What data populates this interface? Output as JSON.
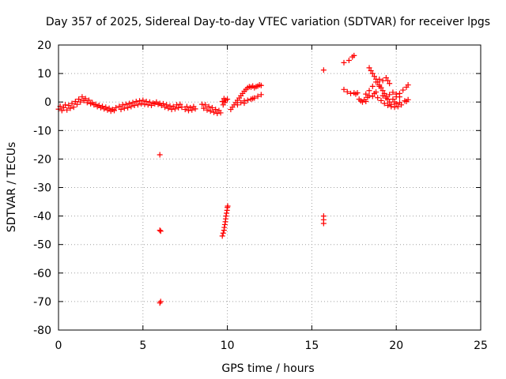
{
  "chart_data": {
    "type": "scatter",
    "title": "Day 357 of 2025, Sidereal Day-to-day VTEC variation (SDTVAR) for receiver lpgs",
    "xlabel": "GPS time / hours",
    "ylabel": "SDTVAR / TECUs",
    "xlim": [
      0,
      25
    ],
    "ylim": [
      -80,
      20
    ],
    "xticks": [
      0,
      5,
      10,
      15,
      20,
      25
    ],
    "yticks": [
      -80,
      -70,
      -60,
      -50,
      -40,
      -30,
      -20,
      -10,
      0,
      10,
      20
    ],
    "xtick_labels": [
      "0",
      "5",
      "10",
      "15",
      "20",
      "25"
    ],
    "ytick_labels": [
      "-80",
      "-70",
      "-60",
      "-50",
      "-40",
      "-30",
      "-20",
      "-10",
      "0",
      "10",
      "20"
    ],
    "grid": true,
    "marker": "plus",
    "color": "#ff0000",
    "series": [
      {
        "name": "SDTVAR",
        "points": [
          [
            0.0,
            -2.5
          ],
          [
            0.1,
            -1.5
          ],
          [
            0.2,
            -3.0
          ],
          [
            0.3,
            -2.0
          ],
          [
            0.4,
            -1.0
          ],
          [
            0.5,
            -2.8
          ],
          [
            0.6,
            -1.2
          ],
          [
            0.7,
            -2.2
          ],
          [
            0.8,
            -0.5
          ],
          [
            0.9,
            -1.8
          ],
          [
            1.0,
            0.2
          ],
          [
            1.1,
            -0.8
          ],
          [
            1.2,
            1.0
          ],
          [
            1.3,
            0.0
          ],
          [
            1.4,
            1.8
          ],
          [
            1.5,
            0.5
          ],
          [
            1.6,
            1.2
          ],
          [
            1.7,
            -0.2
          ],
          [
            1.8,
            0.6
          ],
          [
            1.9,
            -0.6
          ],
          [
            2.0,
            -0.2
          ],
          [
            2.1,
            -1.0
          ],
          [
            2.2,
            -0.8
          ],
          [
            2.3,
            -1.6
          ],
          [
            2.4,
            -1.2
          ],
          [
            2.5,
            -2.0
          ],
          [
            2.6,
            -1.5
          ],
          [
            2.7,
            -2.4
          ],
          [
            2.8,
            -1.8
          ],
          [
            2.9,
            -2.8
          ],
          [
            3.0,
            -2.2
          ],
          [
            3.1,
            -3.2
          ],
          [
            3.2,
            -2.6
          ],
          [
            3.3,
            -3.0
          ],
          [
            3.4,
            -2.0
          ],
          [
            3.6,
            -1.5
          ],
          [
            3.7,
            -2.6
          ],
          [
            3.8,
            -1.0
          ],
          [
            3.9,
            -2.2
          ],
          [
            4.0,
            -0.8
          ],
          [
            4.1,
            -2.0
          ],
          [
            4.2,
            -0.5
          ],
          [
            4.3,
            -1.6
          ],
          [
            4.4,
            -0.2
          ],
          [
            4.5,
            -1.2
          ],
          [
            4.6,
            0.2
          ],
          [
            4.7,
            -1.0
          ],
          [
            4.8,
            0.4
          ],
          [
            4.9,
            -0.6
          ],
          [
            5.0,
            0.6
          ],
          [
            5.1,
            -0.8
          ],
          [
            5.2,
            0.2
          ],
          [
            5.3,
            -1.0
          ],
          [
            5.4,
            0.0
          ],
          [
            5.5,
            -1.2
          ],
          [
            5.6,
            -0.4
          ],
          [
            5.7,
            -0.6
          ],
          [
            5.8,
            0.0
          ],
          [
            5.9,
            -0.8
          ],
          [
            6.0,
            -0.5
          ],
          [
            6.0,
            -18.5
          ],
          [
            6.0,
            -45.0
          ],
          [
            6.0,
            -70.5
          ],
          [
            6.05,
            -70.0
          ],
          [
            6.05,
            -45.3
          ],
          [
            6.1,
            -1.2
          ],
          [
            6.2,
            -0.6
          ],
          [
            6.3,
            -1.8
          ],
          [
            6.4,
            -1.0
          ],
          [
            6.5,
            -2.2
          ],
          [
            6.6,
            -1.4
          ],
          [
            6.7,
            -2.6
          ],
          [
            6.8,
            -1.6
          ],
          [
            6.9,
            -2.4
          ],
          [
            7.0,
            -1.0
          ],
          [
            7.1,
            -2.0
          ],
          [
            7.2,
            -0.8
          ],
          [
            7.3,
            -1.8
          ],
          [
            7.5,
            -2.6
          ],
          [
            7.6,
            -1.6
          ],
          [
            7.7,
            -3.0
          ],
          [
            7.8,
            -2.0
          ],
          [
            7.9,
            -2.8
          ],
          [
            8.0,
            -1.6
          ],
          [
            8.1,
            -2.4
          ],
          [
            8.5,
            -0.8
          ],
          [
            8.6,
            -2.2
          ],
          [
            8.7,
            -1.0
          ],
          [
            8.8,
            -2.8
          ],
          [
            8.9,
            -1.6
          ],
          [
            9.0,
            -3.2
          ],
          [
            9.1,
            -2.0
          ],
          [
            9.2,
            -3.6
          ],
          [
            9.3,
            -2.6
          ],
          [
            9.4,
            -4.0
          ],
          [
            9.5,
            -3.0
          ],
          [
            9.6,
            -3.8
          ],
          [
            9.7,
            0.2
          ],
          [
            9.75,
            -1.0
          ],
          [
            9.8,
            1.2
          ],
          [
            9.85,
            -0.2
          ],
          [
            9.9,
            0.6
          ],
          [
            9.7,
            -47.0
          ],
          [
            9.75,
            -46.0
          ],
          [
            9.8,
            -45.0
          ],
          [
            9.82,
            -44.0
          ],
          [
            9.85,
            -43.0
          ],
          [
            9.88,
            -42.0
          ],
          [
            9.9,
            -41.0
          ],
          [
            9.92,
            -40.0
          ],
          [
            9.95,
            -39.0
          ],
          [
            9.98,
            -38.0
          ],
          [
            10.0,
            -37.0
          ],
          [
            10.02,
            -36.5
          ],
          [
            10.0,
            1.0
          ],
          [
            10.2,
            -2.6
          ],
          [
            10.3,
            -1.8
          ],
          [
            10.4,
            -1.0
          ],
          [
            10.5,
            -0.2
          ],
          [
            10.6,
            0.6
          ],
          [
            10.7,
            1.4
          ],
          [
            10.8,
            2.2
          ],
          [
            10.9,
            3.0
          ],
          [
            11.0,
            3.8
          ],
          [
            11.1,
            4.4
          ],
          [
            11.2,
            5.0
          ],
          [
            11.3,
            5.4
          ],
          [
            11.4,
            5.2
          ],
          [
            11.5,
            5.6
          ],
          [
            11.6,
            5.0
          ],
          [
            11.7,
            5.4
          ],
          [
            11.8,
            5.6
          ],
          [
            11.9,
            6.0
          ],
          [
            12.0,
            5.8
          ],
          [
            10.6,
            -1.0
          ],
          [
            10.8,
            -0.2
          ],
          [
            11.0,
            0.4
          ],
          [
            11.2,
            0.6
          ],
          [
            11.4,
            1.0
          ],
          [
            11.6,
            1.4
          ],
          [
            11.8,
            2.0
          ],
          [
            12.0,
            2.6
          ],
          [
            11.5,
            1.2
          ],
          [
            11.0,
            -0.4
          ],
          [
            15.7,
            11.2
          ],
          [
            15.7,
            -40.0
          ],
          [
            15.7,
            -41.3
          ],
          [
            15.7,
            -42.6
          ],
          [
            16.9,
            13.8
          ],
          [
            17.2,
            14.6
          ],
          [
            17.4,
            15.8
          ],
          [
            17.5,
            16.3
          ],
          [
            16.9,
            4.4
          ],
          [
            17.1,
            3.6
          ],
          [
            17.3,
            3.0
          ],
          [
            17.5,
            3.2
          ],
          [
            17.6,
            2.8
          ],
          [
            17.7,
            3.2
          ],
          [
            17.8,
            1.0
          ],
          [
            17.9,
            0.4
          ],
          [
            18.0,
            0.0
          ],
          [
            18.1,
            0.8
          ],
          [
            18.2,
            0.2
          ],
          [
            18.3,
            1.6
          ],
          [
            18.4,
            12.0
          ],
          [
            18.5,
            11.0
          ],
          [
            18.6,
            10.0
          ],
          [
            18.7,
            9.0
          ],
          [
            18.8,
            8.0
          ],
          [
            18.9,
            7.0
          ],
          [
            19.0,
            6.0
          ],
          [
            19.1,
            5.0
          ],
          [
            19.2,
            4.0
          ],
          [
            19.3,
            3.0
          ],
          [
            19.4,
            2.0
          ],
          [
            19.5,
            1.0
          ],
          [
            19.6,
            0.0
          ],
          [
            19.7,
            -0.8
          ],
          [
            18.6,
            2.0
          ],
          [
            18.8,
            3.5
          ],
          [
            19.0,
            5.5
          ],
          [
            19.2,
            7.5
          ],
          [
            19.4,
            8.5
          ],
          [
            19.5,
            7.5
          ],
          [
            19.6,
            6.5
          ],
          [
            18.4,
            4.0
          ],
          [
            18.6,
            5.5
          ],
          [
            18.8,
            7.0
          ],
          [
            19.0,
            8.0
          ],
          [
            18.7,
            3.0
          ],
          [
            18.9,
            1.5
          ],
          [
            19.1,
            0.5
          ],
          [
            19.3,
            -0.5
          ],
          [
            19.5,
            -1.2
          ],
          [
            19.7,
            -1.6
          ],
          [
            19.9,
            -1.8
          ],
          [
            20.1,
            -1.6
          ],
          [
            20.3,
            -1.0
          ],
          [
            19.8,
            1.0
          ],
          [
            20.0,
            1.8
          ],
          [
            20.2,
            3.0
          ],
          [
            20.4,
            4.2
          ],
          [
            20.6,
            5.2
          ],
          [
            20.7,
            6.0
          ],
          [
            20.5,
            0.4
          ],
          [
            20.6,
            0.2
          ],
          [
            20.7,
            0.8
          ],
          [
            19.9,
            0.0
          ],
          [
            20.0,
            -0.6
          ],
          [
            20.2,
            -0.2
          ],
          [
            18.2,
            2.8
          ],
          [
            18.4,
            2.2
          ],
          [
            19.2,
            2.2
          ],
          [
            19.4,
            1.4
          ],
          [
            19.6,
            2.6
          ],
          [
            19.8,
            3.4
          ],
          [
            20.0,
            2.8
          ],
          [
            20.2,
            1.8
          ]
        ]
      }
    ]
  }
}
